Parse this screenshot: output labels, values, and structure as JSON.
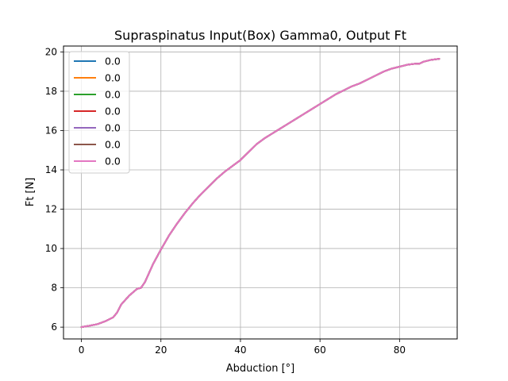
{
  "chart_data": {
    "type": "line",
    "title": "Supraspinatus Input(Box) Gamma0, Output Ft",
    "xlabel": "Abduction [°]",
    "ylabel": "Ft [N]",
    "xlim": [
      -4.5,
      94.5
    ],
    "ylim": [
      5.4,
      20.3
    ],
    "xticks": [
      0,
      20,
      40,
      60,
      80
    ],
    "yticks": [
      6,
      8,
      10,
      12,
      14,
      16,
      18,
      20
    ],
    "xtick_labels": [
      "0",
      "20",
      "40",
      "60",
      "80"
    ],
    "ytick_labels": [
      "6",
      "8",
      "10",
      "12",
      "14",
      "16",
      "18",
      "20"
    ],
    "grid": true,
    "legend": "upper-left",
    "x": [
      0,
      2,
      4,
      6,
      8,
      9,
      10,
      12,
      14,
      15,
      16,
      18,
      20,
      22,
      24,
      26,
      28,
      30,
      32,
      34,
      36,
      38,
      40,
      42,
      44,
      46,
      48,
      50,
      52,
      54,
      56,
      58,
      60,
      62,
      64,
      66,
      68,
      70,
      72,
      74,
      76,
      78,
      80,
      82,
      84,
      85,
      86,
      88,
      90
    ],
    "series": [
      {
        "name": "0.0",
        "color": "#1f77b4",
        "values": [
          6.0,
          6.07,
          6.15,
          6.3,
          6.5,
          6.75,
          7.15,
          7.6,
          7.95,
          8.0,
          8.3,
          9.2,
          9.95,
          10.65,
          11.25,
          11.8,
          12.3,
          12.75,
          13.15,
          13.55,
          13.9,
          14.2,
          14.5,
          14.9,
          15.3,
          15.6,
          15.85,
          16.1,
          16.35,
          16.6,
          16.85,
          17.1,
          17.35,
          17.6,
          17.85,
          18.05,
          18.25,
          18.4,
          18.6,
          18.8,
          19.0,
          19.15,
          19.25,
          19.35,
          19.4,
          19.4,
          19.5,
          19.6,
          19.65
        ]
      },
      {
        "name": "0.0",
        "color": "#ff7f0e",
        "values": [
          6.0,
          6.07,
          6.15,
          6.3,
          6.5,
          6.75,
          7.15,
          7.6,
          7.95,
          8.0,
          8.3,
          9.2,
          9.95,
          10.65,
          11.25,
          11.8,
          12.3,
          12.75,
          13.15,
          13.55,
          13.9,
          14.2,
          14.5,
          14.9,
          15.3,
          15.6,
          15.85,
          16.1,
          16.35,
          16.6,
          16.85,
          17.1,
          17.35,
          17.6,
          17.85,
          18.05,
          18.25,
          18.4,
          18.6,
          18.8,
          19.0,
          19.15,
          19.25,
          19.35,
          19.4,
          19.4,
          19.5,
          19.6,
          19.65
        ]
      },
      {
        "name": "0.0",
        "color": "#2ca02c",
        "values": [
          6.0,
          6.07,
          6.15,
          6.3,
          6.5,
          6.75,
          7.15,
          7.6,
          7.95,
          8.0,
          8.3,
          9.2,
          9.95,
          10.65,
          11.25,
          11.8,
          12.3,
          12.75,
          13.15,
          13.55,
          13.9,
          14.2,
          14.5,
          14.9,
          15.3,
          15.6,
          15.85,
          16.1,
          16.35,
          16.6,
          16.85,
          17.1,
          17.35,
          17.6,
          17.85,
          18.05,
          18.25,
          18.4,
          18.6,
          18.8,
          19.0,
          19.15,
          19.25,
          19.35,
          19.4,
          19.4,
          19.5,
          19.6,
          19.65
        ]
      },
      {
        "name": "0.0",
        "color": "#d62728",
        "values": [
          6.0,
          6.07,
          6.15,
          6.3,
          6.5,
          6.75,
          7.15,
          7.6,
          7.95,
          8.0,
          8.3,
          9.2,
          9.95,
          10.65,
          11.25,
          11.8,
          12.3,
          12.75,
          13.15,
          13.55,
          13.9,
          14.2,
          14.5,
          14.9,
          15.3,
          15.6,
          15.85,
          16.1,
          16.35,
          16.6,
          16.85,
          17.1,
          17.35,
          17.6,
          17.85,
          18.05,
          18.25,
          18.4,
          18.6,
          18.8,
          19.0,
          19.15,
          19.25,
          19.35,
          19.4,
          19.4,
          19.5,
          19.6,
          19.65
        ]
      },
      {
        "name": "0.0",
        "color": "#9467bd",
        "values": [
          6.0,
          6.07,
          6.15,
          6.3,
          6.5,
          6.75,
          7.15,
          7.6,
          7.95,
          8.0,
          8.3,
          9.2,
          9.95,
          10.65,
          11.25,
          11.8,
          12.3,
          12.75,
          13.15,
          13.55,
          13.9,
          14.2,
          14.5,
          14.9,
          15.3,
          15.6,
          15.85,
          16.1,
          16.35,
          16.6,
          16.85,
          17.1,
          17.35,
          17.6,
          17.85,
          18.05,
          18.25,
          18.4,
          18.6,
          18.8,
          19.0,
          19.15,
          19.25,
          19.35,
          19.4,
          19.4,
          19.5,
          19.6,
          19.65
        ]
      },
      {
        "name": "0.0",
        "color": "#8c564b",
        "values": [
          6.0,
          6.07,
          6.15,
          6.3,
          6.5,
          6.75,
          7.15,
          7.6,
          7.95,
          8.0,
          8.3,
          9.2,
          9.95,
          10.65,
          11.25,
          11.8,
          12.3,
          12.75,
          13.15,
          13.55,
          13.9,
          14.2,
          14.5,
          14.9,
          15.3,
          15.6,
          15.85,
          16.1,
          16.35,
          16.6,
          16.85,
          17.1,
          17.35,
          17.6,
          17.85,
          18.05,
          18.25,
          18.4,
          18.6,
          18.8,
          19.0,
          19.15,
          19.25,
          19.35,
          19.4,
          19.4,
          19.5,
          19.6,
          19.65
        ]
      },
      {
        "name": "0.0",
        "color": "#e377c2",
        "values": [
          6.0,
          6.07,
          6.15,
          6.3,
          6.5,
          6.75,
          7.15,
          7.6,
          7.95,
          8.0,
          8.3,
          9.2,
          9.95,
          10.65,
          11.25,
          11.8,
          12.3,
          12.75,
          13.15,
          13.55,
          13.9,
          14.2,
          14.5,
          14.9,
          15.3,
          15.6,
          15.85,
          16.1,
          16.35,
          16.6,
          16.85,
          17.1,
          17.35,
          17.6,
          17.85,
          18.05,
          18.25,
          18.4,
          18.6,
          18.8,
          19.0,
          19.15,
          19.25,
          19.35,
          19.4,
          19.4,
          19.5,
          19.6,
          19.65
        ]
      }
    ]
  }
}
